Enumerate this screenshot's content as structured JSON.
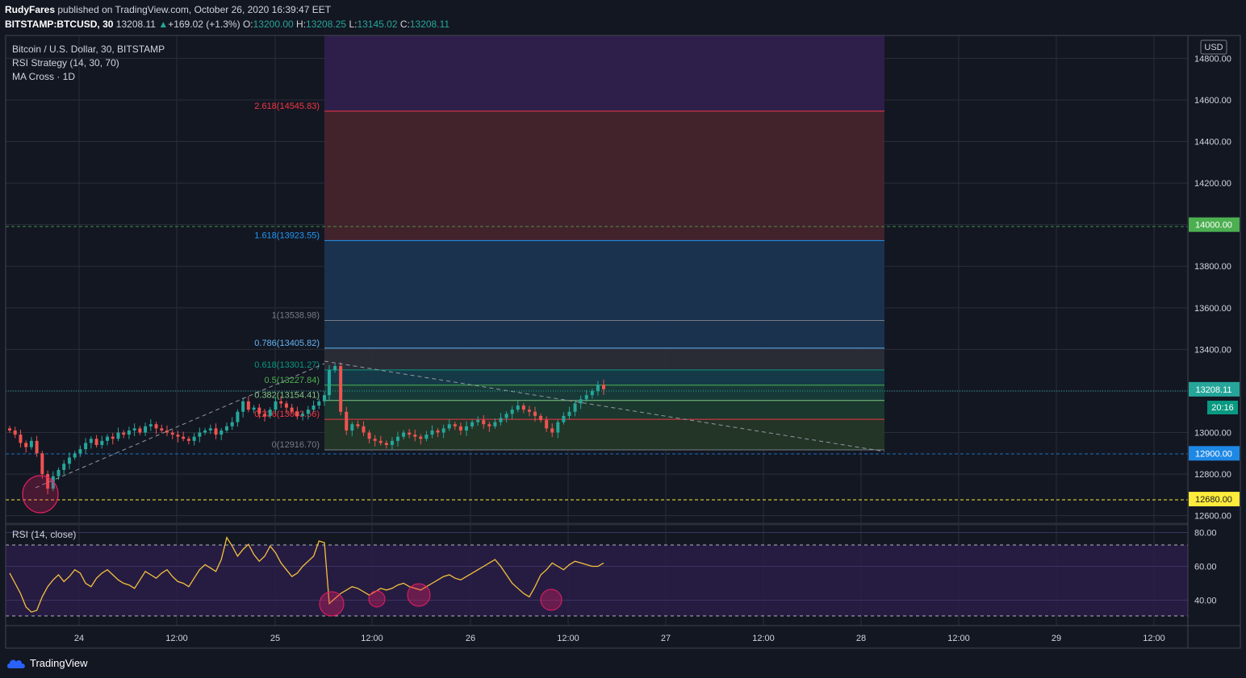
{
  "header": {
    "author": "RudyFares",
    "published": "published on TradingView.com, October 26, 2020 16:39:47 EET",
    "symbol": "BITSTAMP:BTCUSD, 30",
    "last": "13208.11",
    "change": "+169.02 (+1.3%)",
    "o_label": "O:",
    "o": "13200.00",
    "h_label": "H:",
    "h": "13208.25",
    "l_label": "L:",
    "l": "13145.02",
    "c_label": "C:",
    "c": "13208.11"
  },
  "legend": {
    "title": "Bitcoin / U.S. Dollar, 30, BITSTAMP",
    "strategy": "RSI Strategy (14, 30, 70)",
    "ma": "MA Cross · 1D",
    "rsi": "RSI (14, close)"
  },
  "currency": "USD",
  "countdown": "20:16",
  "footer_brand": "TradingView",
  "colors": {
    "background": "#131722",
    "grid": "#2a2e39",
    "up": "#26a69a",
    "down": "#ef5350",
    "rsi_line": "#f5c13d",
    "rsi_band": "#2a1d48",
    "fib_top": "#2e1f4a",
    "fib_red": "#44232c",
    "fib_blue": "#1a3451",
    "fib_gray": "#2a2d37",
    "level_green": "#4caf50",
    "level_blue": "#1e88e5",
    "level_yellow": "#ffeb3b"
  },
  "chart_data": [
    {
      "type": "candlestick",
      "title": "Bitcoin / U.S. Dollar, 30, BITSTAMP",
      "ylim": [
        12560,
        14910
      ],
      "y_ticks": [
        "14800.00",
        "14600.00",
        "14400.00",
        "14200.00",
        "14000.00",
        "13800.00",
        "13600.00",
        "13400.00",
        "13200.00",
        "13000.00",
        "12800.00",
        "12600.00"
      ],
      "x_ticks": [
        "24",
        "12:00",
        "25",
        "12:00",
        "26",
        "12:00",
        "27",
        "12:00",
        "28",
        "12:00",
        "29",
        "12:00"
      ],
      "price_marks": [
        {
          "label": "14000.00",
          "value": 14000,
          "color": "#4caf50"
        },
        {
          "label": "13208.11",
          "value": 13208.11,
          "color": "#26a69a"
        },
        {
          "label": "12900.00",
          "value": 12900,
          "color": "#1e88e5"
        },
        {
          "label": "12680.00",
          "value": 12680,
          "color": "#ffeb3b"
        }
      ],
      "fib_levels": [
        {
          "ratio": "2.618",
          "label": "2.618(14545.83)",
          "value": 14545.83,
          "color": "#f23645"
        },
        {
          "ratio": "1.618",
          "label": "1.618(13923.55)",
          "value": 13923.55,
          "color": "#2196f3"
        },
        {
          "ratio": "1",
          "label": "1(13538.98)",
          "value": 13538.98,
          "color": "#787b86"
        },
        {
          "ratio": "0.786",
          "label": "0.786(13405.82)",
          "value": 13405.82,
          "color": "#64b5f6"
        },
        {
          "ratio": "0.618",
          "label": "0.618(13301.27)",
          "value": 13301.27,
          "color": "#089981"
        },
        {
          "ratio": "0.5",
          "label": "0.5(13227.84)",
          "value": 13227.84,
          "color": "#4caf50"
        },
        {
          "ratio": "0.382",
          "label": "0.382(13154.41)",
          "value": 13154.41,
          "color": "#81c784"
        },
        {
          "ratio": "0.236",
          "label": "0.236(13063.56)",
          "value": 13063.56,
          "color": "#f23645"
        },
        {
          "ratio": "0",
          "label": "0(12916.70)",
          "value": 12916.7,
          "color": "#787b86"
        }
      ],
      "series": [
        {
          "name": "close",
          "kind": "ohlc_close_approx",
          "values": [
            13010,
            12990,
            12950,
            12930,
            12960,
            12900,
            12800,
            12730,
            12790,
            12820,
            12850,
            12880,
            12900,
            12920,
            12950,
            12970,
            12940,
            12960,
            12980,
            12970,
            13000,
            12990,
            13010,
            13020,
            13000,
            13030,
            13040,
            13020,
            13010,
            13000,
            12990,
            12980,
            12970,
            12960,
            12980,
            13000,
            13010,
            13020,
            12990,
            13010,
            13030,
            13050,
            13100,
            13150,
            13110,
            13120,
            13090,
            13080,
            13110,
            13150,
            13140,
            13120,
            13100,
            13080,
            13090,
            13110,
            13130,
            13150,
            13180,
            13300,
            13320,
            13100,
            13010,
            13040,
            13030,
            13000,
            12970,
            12960,
            12950,
            12940,
            12960,
            12980,
            13000,
            12990,
            12980,
            12970,
            12990,
            13010,
            13000,
            13020,
            13040,
            13030,
            13010,
            13030,
            13050,
            13060,
            13040,
            13030,
            13050,
            13070,
            13090,
            13110,
            13130,
            13110,
            13100,
            13080,
            13060,
            13020,
            13000,
            13050,
            13080,
            13100,
            13140,
            13160,
            13180,
            13200,
            13230,
            13208
          ]
        }
      ]
    },
    {
      "type": "line",
      "title": "RSI (14, close)",
      "ylim": [
        25,
        85
      ],
      "y_ticks": [
        "80.00",
        "60.00",
        "40.00"
      ],
      "bands": [
        30,
        70
      ],
      "series": [
        {
          "name": "RSI",
          "values": [
            56,
            50,
            44,
            36,
            33,
            34,
            42,
            48,
            52,
            55,
            51,
            54,
            58,
            56,
            50,
            48,
            53,
            56,
            58,
            55,
            52,
            50,
            49,
            47,
            52,
            57,
            55,
            53,
            56,
            58,
            54,
            51,
            50,
            48,
            53,
            58,
            61,
            59,
            57,
            64,
            77,
            72,
            66,
            70,
            73,
            67,
            63,
            66,
            72,
            68,
            62,
            58,
            54,
            56,
            60,
            63,
            66,
            75,
            74,
            38,
            41,
            44,
            46,
            48,
            47,
            45,
            43,
            45,
            47,
            46,
            47,
            49,
            50,
            48,
            47,
            46,
            48,
            50,
            52,
            54,
            55,
            53,
            52,
            54,
            56,
            58,
            60,
            62,
            64,
            60,
            55,
            50,
            47,
            44,
            42,
            48,
            55,
            58,
            62,
            60,
            58,
            61,
            63,
            62,
            61,
            60,
            60,
            62
          ]
        }
      ]
    }
  ]
}
